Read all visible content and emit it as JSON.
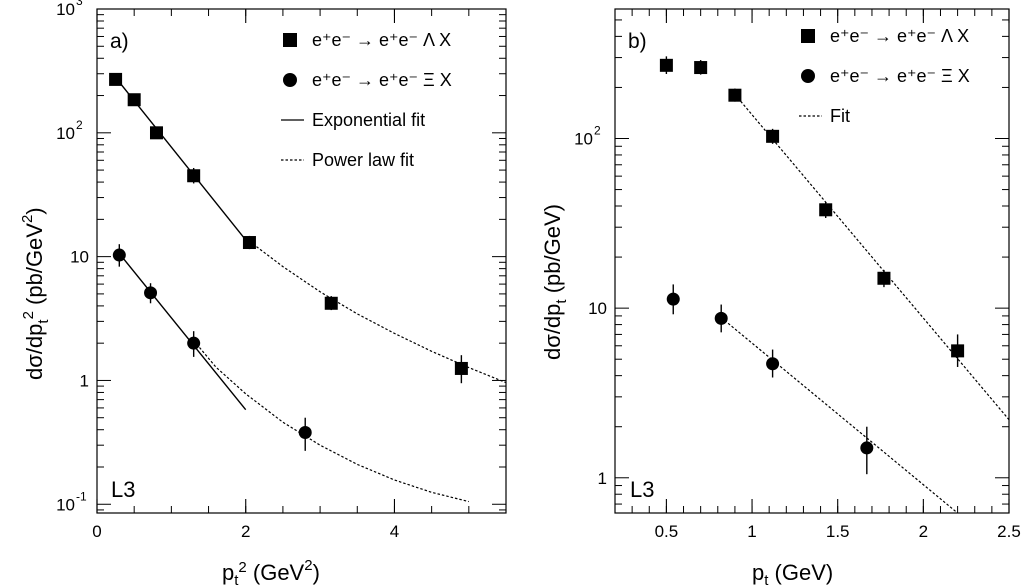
{
  "chart_data": [
    {
      "type": "scatter",
      "panel_label": "a)",
      "experiment": "L3",
      "xlabel": "p_t^2 (GeV^2)",
      "ylabel": "dσ/dp_t^2 (pb/GeV^2)",
      "x_scale": "linear",
      "y_scale": "log",
      "xlim": [
        0,
        5.5
      ],
      "ylim": [
        0.085,
        1000
      ],
      "x_ticks": [
        {
          "v": 0,
          "label": "0"
        },
        {
          "v": 2,
          "label": "2"
        },
        {
          "v": 4,
          "label": "4"
        }
      ],
      "y_ticks": [
        {
          "v": 0.1,
          "base": "10",
          "exp": "-1"
        },
        {
          "v": 1,
          "base": "1",
          "exp": ""
        },
        {
          "v": 10,
          "base": "10",
          "exp": ""
        },
        {
          "v": 100,
          "base": "10",
          "exp": "2"
        },
        {
          "v": 1000,
          "base": "10",
          "exp": "3"
        }
      ],
      "legend": [
        {
          "kind": "square",
          "text": "e⁺e⁻ → e⁺e⁻ Λ X"
        },
        {
          "kind": "circle",
          "text": "e⁺e⁻ → e⁺e⁻ Ξ X"
        },
        {
          "kind": "solid",
          "text": "Exponential fit"
        },
        {
          "kind": "dotted",
          "text": "Power law fit"
        }
      ],
      "series": [
        {
          "name": "e⁺e⁻ → e⁺e⁻ Λ X",
          "marker": "square",
          "points": [
            {
              "x": 0.25,
              "y": 270,
              "lo": 245,
              "hi": 300
            },
            {
              "x": 0.5,
              "y": 185,
              "lo": 168,
              "hi": 205
            },
            {
              "x": 0.8,
              "y": 100,
              "lo": 90,
              "hi": 112
            },
            {
              "x": 1.3,
              "y": 45,
              "lo": 39,
              "hi": 52
            },
            {
              "x": 2.05,
              "y": 13,
              "lo": 11.5,
              "hi": 14.7
            },
            {
              "x": 3.15,
              "y": 4.2,
              "lo": 3.7,
              "hi": 4.8
            },
            {
              "x": 4.9,
              "y": 1.25,
              "lo": 0.95,
              "hi": 1.6
            }
          ]
        },
        {
          "name": "e⁺e⁻ → e⁺e⁻ Ξ X",
          "marker": "circle",
          "points": [
            {
              "x": 0.3,
              "y": 10.3,
              "lo": 8.3,
              "hi": 12.6
            },
            {
              "x": 0.72,
              "y": 5.1,
              "lo": 4.2,
              "hi": 6.1
            },
            {
              "x": 1.3,
              "y": 2.0,
              "lo": 1.55,
              "hi": 2.5
            },
            {
              "x": 2.8,
              "y": 0.38,
              "lo": 0.27,
              "hi": 0.5
            }
          ]
        }
      ],
      "fits": [
        {
          "style": "solid",
          "points": [
            [
              0.25,
              280
            ],
            [
              2.05,
              12.5
            ]
          ]
        },
        {
          "style": "dotted",
          "points": [
            [
              2.0,
              14
            ],
            [
              2.5,
              8.3
            ],
            [
              3.0,
              5.2
            ],
            [
              3.5,
              3.45
            ],
            [
              4.0,
              2.4
            ],
            [
              4.5,
              1.72
            ],
            [
              5.0,
              1.27
            ],
            [
              5.5,
              0.96
            ]
          ]
        },
        {
          "style": "solid",
          "points": [
            [
              0.3,
              10.6
            ],
            [
              2.0,
              0.58
            ]
          ]
        },
        {
          "style": "dotted",
          "points": [
            [
              1.3,
              2.1
            ],
            [
              1.6,
              1.28
            ],
            [
              2.0,
              0.78
            ],
            [
              2.5,
              0.46
            ],
            [
              3.0,
              0.3
            ],
            [
              3.5,
              0.21
            ],
            [
              4.0,
              0.157
            ],
            [
              4.5,
              0.125
            ],
            [
              5.0,
              0.105
            ]
          ]
        }
      ]
    },
    {
      "type": "scatter",
      "panel_label": "b)",
      "experiment": "L3",
      "xlabel": "p_t (GeV)",
      "ylabel": "dσ/dp_t (pb/GeV)",
      "x_scale": "linear",
      "y_scale": "log",
      "xlim": [
        0.2,
        2.5
      ],
      "ylim": [
        0.62,
        580
      ],
      "x_ticks": [
        {
          "v": 0.5,
          "label": "0.5"
        },
        {
          "v": 1.0,
          "label": "1"
        },
        {
          "v": 1.5,
          "label": "1.5"
        },
        {
          "v": 2.0,
          "label": "2"
        },
        {
          "v": 2.5,
          "label": "2.5"
        }
      ],
      "y_ticks": [
        {
          "v": 1,
          "base": "1",
          "exp": ""
        },
        {
          "v": 10,
          "base": "10",
          "exp": ""
        },
        {
          "v": 100,
          "base": "10",
          "exp": "2"
        }
      ],
      "legend": [
        {
          "kind": "square",
          "text": "e⁺e⁻ → e⁺e⁻ Λ X"
        },
        {
          "kind": "circle",
          "text": "e⁺e⁻ → e⁺e⁻ Ξ X"
        },
        {
          "kind": "dotted",
          "text": "Fit"
        }
      ],
      "series": [
        {
          "name": "e⁺e⁻ → e⁺e⁻ Λ X",
          "marker": "square",
          "points": [
            {
              "x": 0.5,
              "y": 270,
              "lo": 240,
              "hi": 305
            },
            {
              "x": 0.7,
              "y": 262,
              "lo": 238,
              "hi": 290
            },
            {
              "x": 0.9,
              "y": 180,
              "lo": 165,
              "hi": 197
            },
            {
              "x": 1.12,
              "y": 103,
              "lo": 93,
              "hi": 114
            },
            {
              "x": 1.43,
              "y": 38,
              "lo": 34,
              "hi": 42
            },
            {
              "x": 1.77,
              "y": 15,
              "lo": 13.3,
              "hi": 16.8
            },
            {
              "x": 2.2,
              "y": 5.6,
              "lo": 4.5,
              "hi": 7.0
            }
          ]
        },
        {
          "name": "e⁺e⁻ → e⁺e⁻ Ξ X",
          "marker": "circle",
          "points": [
            {
              "x": 0.54,
              "y": 11.3,
              "lo": 9.2,
              "hi": 13.8
            },
            {
              "x": 0.82,
              "y": 8.7,
              "lo": 7.2,
              "hi": 10.5
            },
            {
              "x": 1.12,
              "y": 4.7,
              "lo": 3.9,
              "hi": 5.7
            },
            {
              "x": 1.67,
              "y": 1.5,
              "lo": 1.05,
              "hi": 2.0
            }
          ]
        }
      ],
      "fits": [
        {
          "style": "dotted",
          "points": [
            [
              0.9,
              182
            ],
            [
              2.5,
              2.2
            ]
          ]
        },
        {
          "style": "dotted",
          "points": [
            [
              0.82,
              8.8
            ],
            [
              2.2,
              0.62
            ]
          ]
        }
      ]
    }
  ]
}
